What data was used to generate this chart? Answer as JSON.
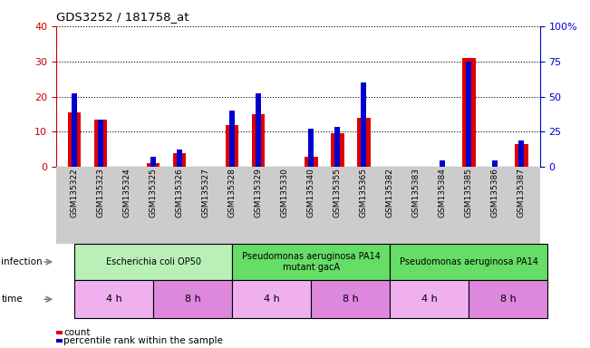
{
  "title": "GDS3252 / 181758_at",
  "samples": [
    "GSM135322",
    "GSM135323",
    "GSM135324",
    "GSM135325",
    "GSM135326",
    "GSM135327",
    "GSM135328",
    "GSM135329",
    "GSM135330",
    "GSM135340",
    "GSM135355",
    "GSM135365",
    "GSM135382",
    "GSM135383",
    "GSM135384",
    "GSM135385",
    "GSM135386",
    "GSM135387"
  ],
  "count_values": [
    15.5,
    13.5,
    0,
    1.2,
    4.0,
    0,
    12.0,
    15.0,
    0,
    3.0,
    9.5,
    14.0,
    0,
    0,
    0,
    31.0,
    0,
    6.5
  ],
  "percentile_values": [
    21.0,
    13.5,
    0,
    3.0,
    5.0,
    0,
    16.0,
    21.0,
    0,
    11.0,
    11.5,
    24.0,
    0,
    0,
    2.0,
    30.0,
    2.0,
    7.5
  ],
  "ylim_left": [
    0,
    40
  ],
  "ylim_right": [
    0,
    100
  ],
  "yticks_left": [
    0,
    10,
    20,
    30,
    40
  ],
  "yticks_right": [
    0,
    25,
    50,
    75,
    100
  ],
  "count_color": "#dd0000",
  "percentile_color": "#0000cc",
  "infection_groups": [
    {
      "label": "Escherichia coli OP50",
      "start": 0,
      "end": 6,
      "color": "#b8f0b8"
    },
    {
      "label": "Pseudomonas aeruginosa PA14\nmutant gacA",
      "start": 6,
      "end": 12,
      "color": "#66dd66"
    },
    {
      "label": "Pseudomonas aeruginosa PA14",
      "start": 12,
      "end": 18,
      "color": "#66dd66"
    }
  ],
  "time_groups": [
    {
      "label": "4 h",
      "start": 0,
      "end": 3,
      "color": "#f0b0f0"
    },
    {
      "label": "8 h",
      "start": 3,
      "end": 6,
      "color": "#dd88dd"
    },
    {
      "label": "4 h",
      "start": 6,
      "end": 9,
      "color": "#f0b0f0"
    },
    {
      "label": "8 h",
      "start": 9,
      "end": 12,
      "color": "#dd88dd"
    },
    {
      "label": "4 h",
      "start": 12,
      "end": 15,
      "color": "#f0b0f0"
    },
    {
      "label": "8 h",
      "start": 15,
      "end": 18,
      "color": "#dd88dd"
    }
  ],
  "tick_color_left": "#cc0000",
  "tick_color_right": "#0000cc",
  "plot_bg_color": "white",
  "xlabel_bg_color": "#cccccc"
}
